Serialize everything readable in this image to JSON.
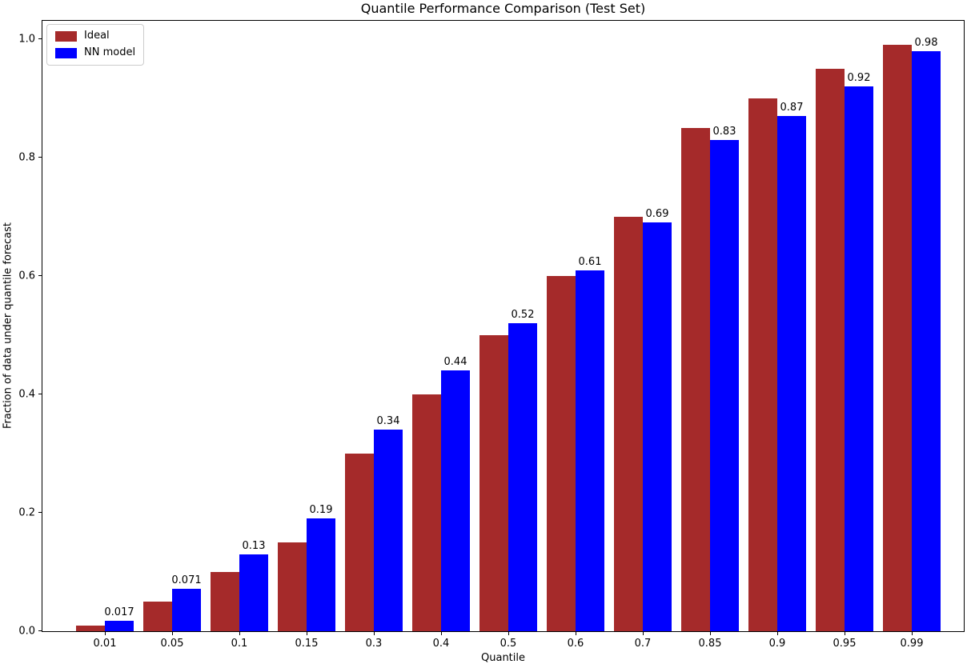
{
  "chart_data": {
    "type": "bar",
    "title": "Quantile Performance Comparison (Test Set)",
    "xlabel": "Quantile",
    "ylabel": "Fraction of data under quantile forecast",
    "categories": [
      "0.01",
      "0.05",
      "0.1",
      "0.15",
      "0.3",
      "0.4",
      "0.5",
      "0.6",
      "0.7",
      "0.85",
      "0.9",
      "0.95",
      "0.99"
    ],
    "series": [
      {
        "name": "Ideal",
        "color": "#A52A2A",
        "values": [
          0.01,
          0.05,
          0.1,
          0.15,
          0.3,
          0.4,
          0.5,
          0.6,
          0.7,
          0.85,
          0.9,
          0.95,
          0.99
        ]
      },
      {
        "name": "NN model",
        "color": "#0000FF",
        "values": [
          0.017,
          0.071,
          0.13,
          0.19,
          0.34,
          0.44,
          0.52,
          0.61,
          0.69,
          0.83,
          0.87,
          0.92,
          0.98
        ],
        "bar_labels": [
          "0.017",
          "0.071",
          "0.13",
          "0.19",
          "0.34",
          "0.44",
          "0.52",
          "0.61",
          "0.69",
          "0.83",
          "0.87",
          "0.92",
          "0.98"
        ]
      }
    ],
    "ylim": [
      0.0,
      1.034
    ],
    "yticks": [
      "0.0",
      "0.2",
      "0.4",
      "0.6",
      "0.8",
      "1.0"
    ],
    "legend_position": "upper left",
    "grid": false
  }
}
